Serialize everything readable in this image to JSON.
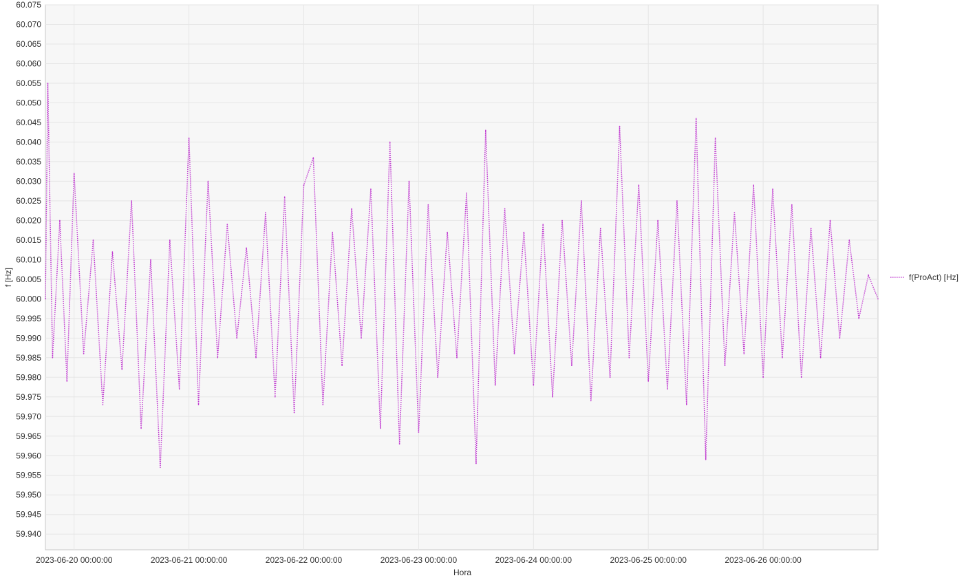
{
  "chart_data": {
    "type": "line",
    "title": "",
    "xlabel": "Hora",
    "ylabel": "f [Hz]",
    "ylim": [
      59.936,
      60.075
    ],
    "xlim": [
      "2023-06-19 18:00:00",
      "2023-06-27 00:00:00"
    ],
    "yticks": [
      "59.940",
      "59.945",
      "59.950",
      "59.955",
      "59.960",
      "59.965",
      "59.970",
      "59.975",
      "59.980",
      "59.985",
      "59.990",
      "59.995",
      "60.000",
      "60.005",
      "60.010",
      "60.015",
      "60.020",
      "60.025",
      "60.030",
      "60.035",
      "60.040",
      "60.045",
      "60.050",
      "60.055",
      "60.060",
      "60.065",
      "60.070",
      "60.075"
    ],
    "xticks": [
      "2023-06-20 00:00:00",
      "2023-06-21 00:00:00",
      "2023-06-22 00:00:00",
      "2023-06-23 00:00:00",
      "2023-06-24 00:00:00",
      "2023-06-25 00:00:00",
      "2023-06-26 00:00:00"
    ],
    "grid": true,
    "legend_position": "right",
    "colors": {
      "series": "#c03bd0",
      "background": "#f7f7f7",
      "grid": "#e6e6e6",
      "axis": "#c8c8c8"
    },
    "series": [
      {
        "name": "f(ProAct) [Hz]",
        "style": "dotted",
        "x": [
          "2023-06-19 18:00",
          "2023-06-19 18:30",
          "2023-06-19 19:30",
          "2023-06-19 21:00",
          "2023-06-19 22:30",
          "2023-06-20 00:00",
          "2023-06-20 02:00",
          "2023-06-20 04:00",
          "2023-06-20 06:00",
          "2023-06-20 08:00",
          "2023-06-20 10:00",
          "2023-06-20 12:00",
          "2023-06-20 14:00",
          "2023-06-20 16:00",
          "2023-06-20 18:00",
          "2023-06-20 20:00",
          "2023-06-20 22:00",
          "2023-06-21 00:00",
          "2023-06-21 02:00",
          "2023-06-21 04:00",
          "2023-06-21 06:00",
          "2023-06-21 08:00",
          "2023-06-21 10:00",
          "2023-06-21 12:00",
          "2023-06-21 14:00",
          "2023-06-21 16:00",
          "2023-06-21 18:00",
          "2023-06-21 20:00",
          "2023-06-21 22:00",
          "2023-06-22 00:00",
          "2023-06-22 02:00",
          "2023-06-22 04:00",
          "2023-06-22 06:00",
          "2023-06-22 08:00",
          "2023-06-22 10:00",
          "2023-06-22 12:00",
          "2023-06-22 14:00",
          "2023-06-22 16:00",
          "2023-06-22 18:00",
          "2023-06-22 20:00",
          "2023-06-22 22:00",
          "2023-06-23 00:00",
          "2023-06-23 02:00",
          "2023-06-23 04:00",
          "2023-06-23 06:00",
          "2023-06-23 08:00",
          "2023-06-23 10:00",
          "2023-06-23 12:00",
          "2023-06-23 14:00",
          "2023-06-23 16:00",
          "2023-06-23 18:00",
          "2023-06-23 20:00",
          "2023-06-23 22:00",
          "2023-06-24 00:00",
          "2023-06-24 02:00",
          "2023-06-24 04:00",
          "2023-06-24 06:00",
          "2023-06-24 08:00",
          "2023-06-24 10:00",
          "2023-06-24 12:00",
          "2023-06-24 14:00",
          "2023-06-24 16:00",
          "2023-06-24 18:00",
          "2023-06-24 20:00",
          "2023-06-24 22:00",
          "2023-06-25 00:00",
          "2023-06-25 02:00",
          "2023-06-25 04:00",
          "2023-06-25 06:00",
          "2023-06-25 08:00",
          "2023-06-25 10:00",
          "2023-06-25 12:00",
          "2023-06-25 14:00",
          "2023-06-25 16:00",
          "2023-06-25 18:00",
          "2023-06-25 20:00",
          "2023-06-25 22:00",
          "2023-06-26 00:00",
          "2023-06-26 02:00",
          "2023-06-26 04:00",
          "2023-06-26 06:00",
          "2023-06-26 08:00",
          "2023-06-26 10:00",
          "2023-06-26 12:00",
          "2023-06-26 14:00",
          "2023-06-26 16:00",
          "2023-06-26 18:00",
          "2023-06-26 20:00",
          "2023-06-26 22:00",
          "2023-06-27 00:00"
        ],
        "y": [
          60.0,
          60.055,
          59.985,
          60.02,
          59.979,
          60.032,
          59.986,
          60.015,
          59.973,
          60.012,
          59.982,
          60.025,
          59.967,
          60.01,
          59.957,
          60.015,
          59.977,
          60.041,
          59.973,
          60.03,
          59.985,
          60.019,
          59.99,
          60.013,
          59.985,
          60.022,
          59.975,
          60.026,
          59.971,
          60.029,
          60.036,
          59.973,
          60.017,
          59.983,
          60.023,
          59.99,
          60.028,
          59.967,
          60.04,
          59.963,
          60.03,
          59.966,
          60.024,
          59.98,
          60.017,
          59.985,
          60.027,
          59.958,
          60.043,
          59.978,
          60.023,
          59.986,
          60.017,
          59.978,
          60.019,
          59.975,
          60.02,
          59.983,
          60.025,
          59.974,
          60.018,
          59.98,
          60.044,
          59.985,
          60.029,
          59.979,
          60.02,
          59.977,
          60.025,
          59.973,
          60.046,
          59.959,
          60.041,
          59.983,
          60.022,
          59.986,
          60.029,
          59.98,
          60.028,
          59.985,
          60.024,
          59.98,
          60.018,
          59.985,
          60.02,
          59.99,
          60.015,
          59.995,
          60.006,
          60.0
        ]
      }
    ]
  }
}
